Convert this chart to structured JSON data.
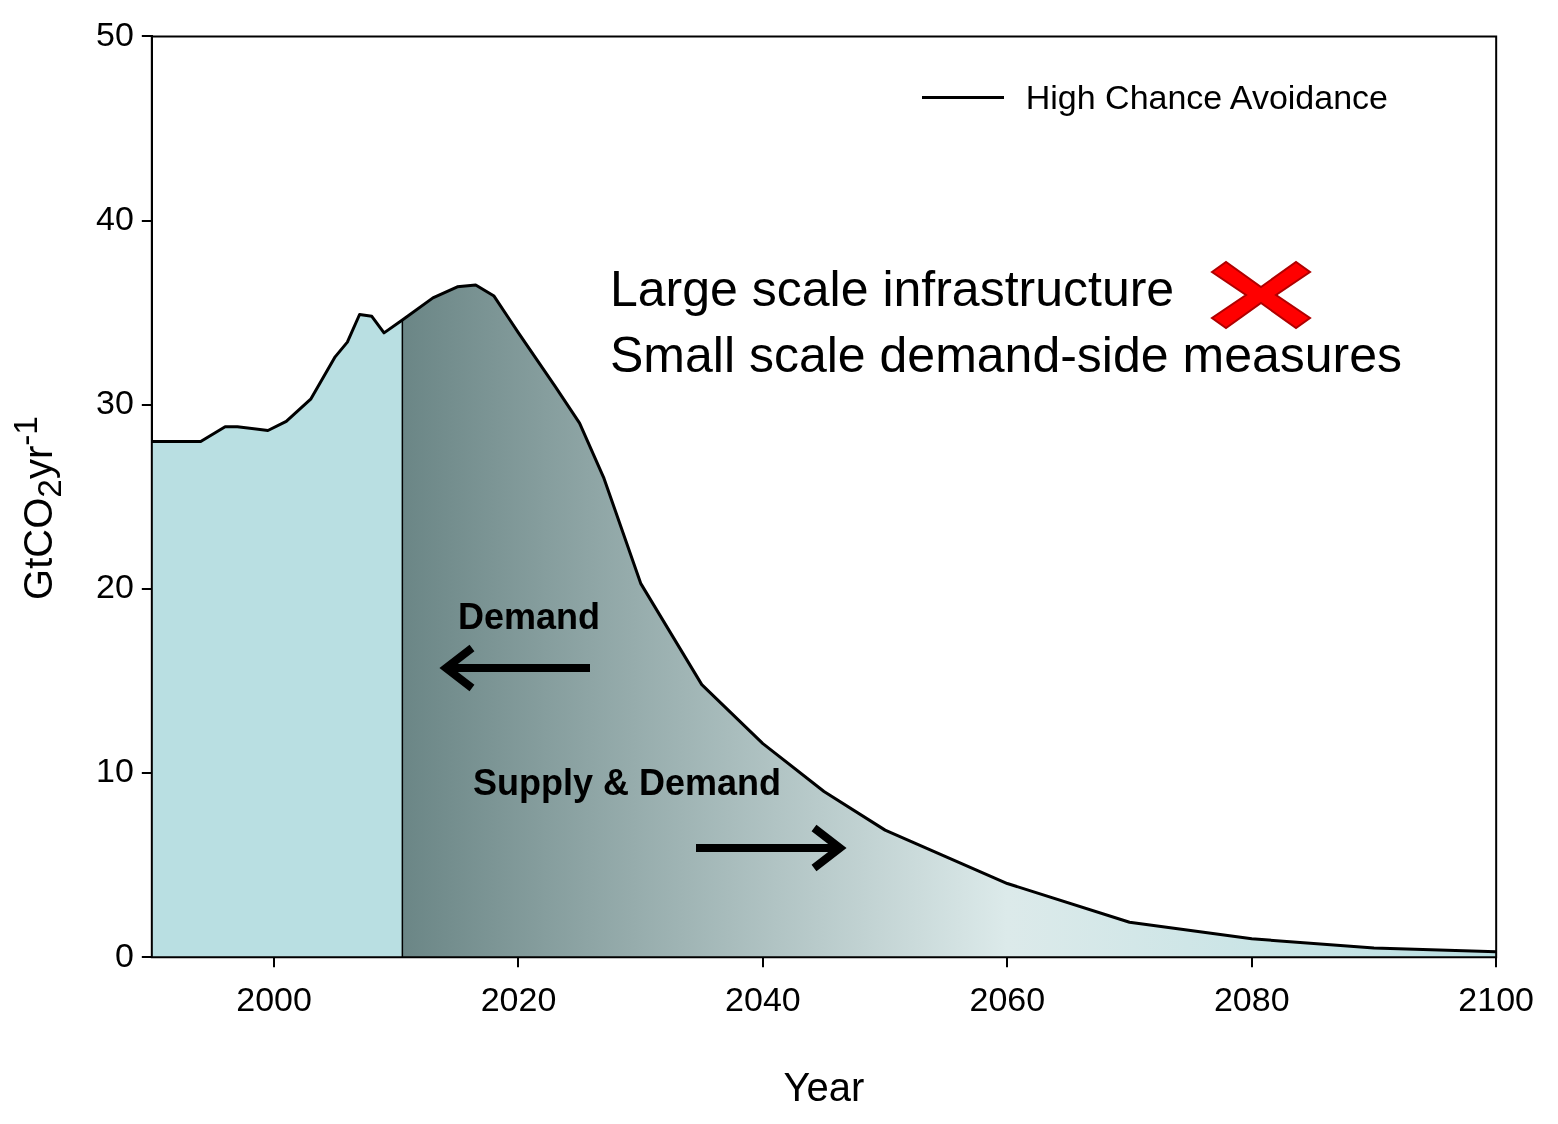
{
  "chart_data": {
    "type": "area",
    "xlabel": "Year",
    "ylabel": "GtCO$_{2}$yr$^{-1}$",
    "x": [
      1990,
      1994,
      1996,
      1997,
      1999.5,
      2001,
      2003,
      2005,
      2006,
      2007,
      2008,
      2009,
      2010.5,
      2013,
      2015,
      2016.5,
      2018,
      2020,
      2023,
      2025,
      2027,
      2030,
      2035,
      2040,
      2045,
      2050,
      2060,
      2070,
      2080,
      2090,
      2100
    ],
    "series": [
      {
        "name": "High Chance Avoidance",
        "color": "#000000",
        "values": [
          28.0,
          28.0,
          28.8,
          28.8,
          28.6,
          29.1,
          30.3,
          32.6,
          33.4,
          34.9,
          34.8,
          33.9,
          34.6,
          35.8,
          36.4,
          36.5,
          35.9,
          33.9,
          31.0,
          29.0,
          26.0,
          20.3,
          14.8,
          11.6,
          9.0,
          6.9,
          4.0,
          1.9,
          1.0,
          0.5,
          0.3
        ]
      }
    ],
    "xlim": [
      1990,
      2100
    ],
    "xticks": [
      2000,
      2020,
      2040,
      2060,
      2080,
      2100
    ],
    "ylim": [
      0,
      50
    ],
    "yticks": [
      0,
      10,
      20,
      30,
      40,
      50
    ],
    "grid": false,
    "legend": "top right",
    "marker": "none",
    "line_style": "solid",
    "ref_lines": [
      {
        "axis": "x",
        "value": 2010.5,
        "color": "#000000"
      }
    ],
    "annotations": [
      "Large scale infrastructure",
      "Small scale demand-side measures",
      "Demand",
      "Supply & Demand"
    ]
  }
}
